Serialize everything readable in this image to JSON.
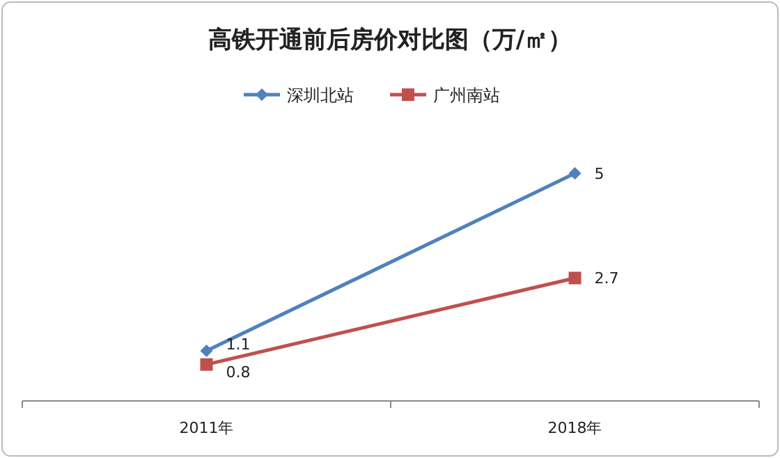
{
  "chart_data": {
    "type": "line",
    "title": "高铁开通前后房价对比图（万/㎡）",
    "categories": [
      "2011年",
      "2018年"
    ],
    "series": [
      {
        "name": "深圳北站",
        "color": "#4f81bd",
        "values": [
          1.1,
          5
        ],
        "marker": "diamond"
      },
      {
        "name": "广州南站",
        "color": "#c0504d",
        "values": [
          0.8,
          2.7
        ],
        "marker": "square"
      }
    ],
    "data_labels": true,
    "legend": "top",
    "grid": false
  }
}
